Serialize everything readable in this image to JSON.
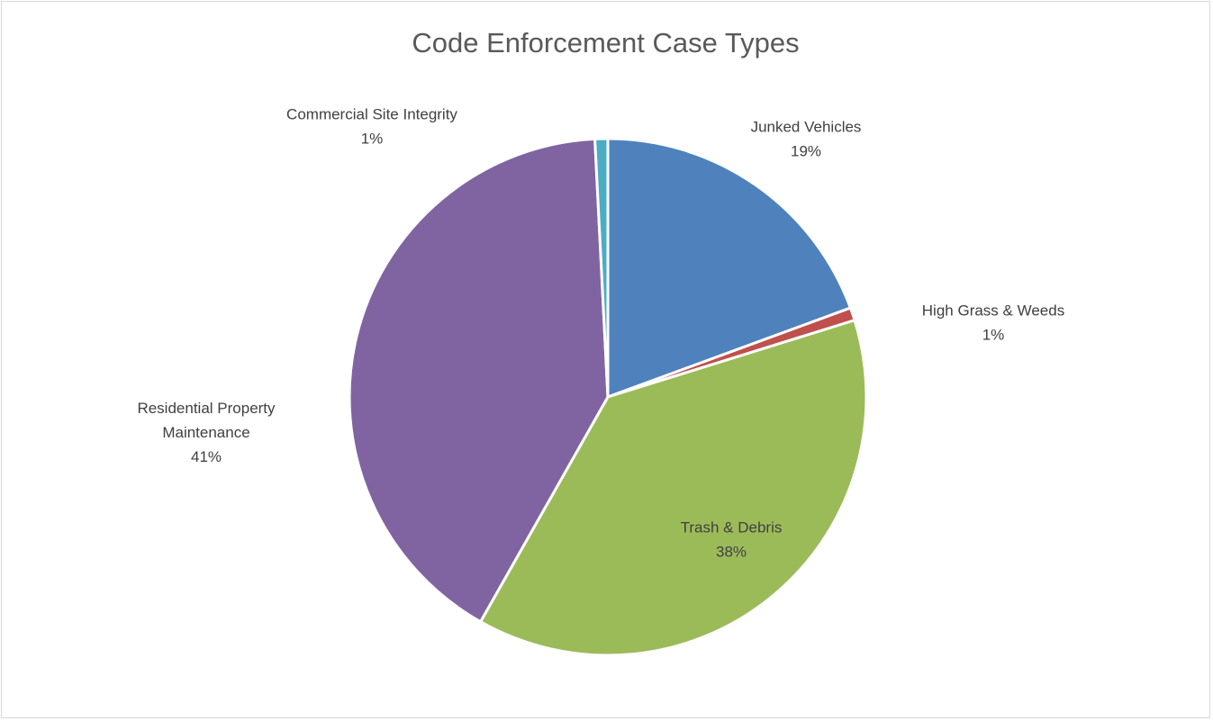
{
  "chart_data": {
    "type": "pie",
    "title": "Code Enforcement Case Types",
    "slices": [
      {
        "name": "Junked Vehicles",
        "name_lines": [
          "Junked Vehicles"
        ],
        "value": 19.4,
        "pct_label": "19%",
        "color": "#4F81BD"
      },
      {
        "name": "High Grass & Weeds",
        "name_lines": [
          "High Grass & Weeds"
        ],
        "value": 0.8,
        "pct_label": "1%",
        "color": "#C0504D"
      },
      {
        "name": "Trash & Debris",
        "name_lines": [
          "Trash & Debris"
        ],
        "value": 38.0,
        "pct_label": "38%",
        "color": "#9BBB59"
      },
      {
        "name": "Residential Property Maintenance",
        "name_lines": [
          "Residential Property",
          "Maintenance"
        ],
        "value": 41.0,
        "pct_label": "41%",
        "color": "#8064A2"
      },
      {
        "name": "Commercial Site Integrity",
        "name_lines": [
          "Commercial Site Integrity"
        ],
        "value": 0.8,
        "pct_label": "1%",
        "color": "#4BACC6"
      }
    ],
    "start_angle_deg": 0,
    "direction": "clockwise",
    "legend": "none",
    "data_labels": "category name and percentage"
  }
}
